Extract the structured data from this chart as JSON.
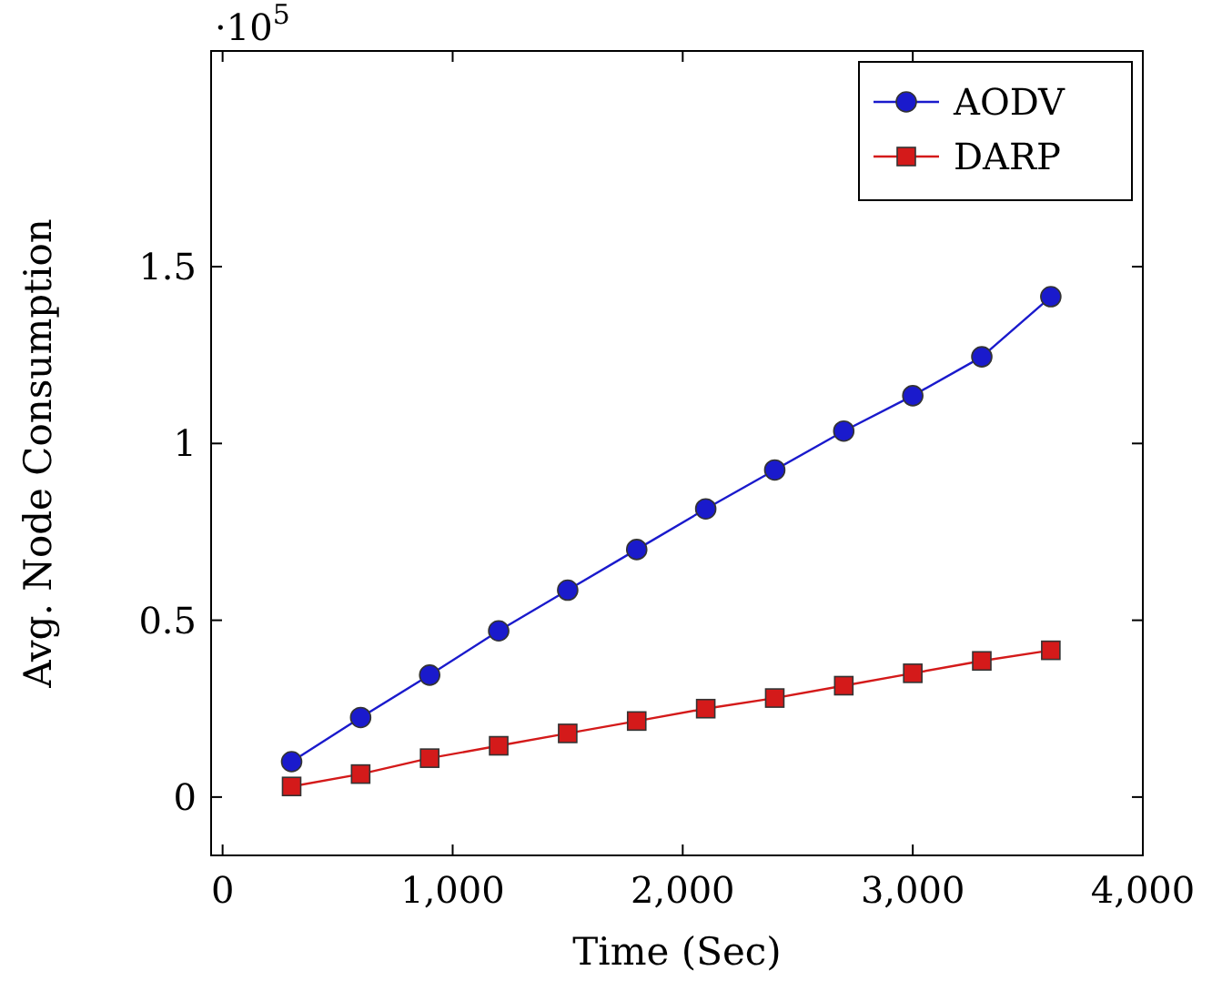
{
  "chart_data": {
    "type": "line",
    "xlabel": "Time (Sec)",
    "ylabel": "Avg. Node Consumption",
    "annotations": [
      "·10$^{5}$"
    ],
    "x": [
      300,
      600,
      900,
      1200,
      1500,
      1800,
      2100,
      2400,
      2700,
      3000,
      3300,
      3600
    ],
    "xlim": [
      -50,
      4000
    ],
    "xticks": [
      {
        "value": 0,
        "label": "0"
      },
      {
        "value": 1000,
        "label": "1,000"
      },
      {
        "value": 2000,
        "label": "2,000"
      },
      {
        "value": 3000,
        "label": "3,000"
      },
      {
        "value": 4000,
        "label": "4,000"
      }
    ],
    "ylim": [
      -0.165,
      2.11
    ],
    "yticks": [
      0,
      0.5,
      1,
      1.5
    ],
    "legend": "top right",
    "grid": false,
    "series": [
      {
        "name": "AODV",
        "color": "#1a1acc",
        "marker": "circle",
        "values": [
          0.1,
          0.225,
          0.345,
          0.47,
          0.585,
          0.7,
          0.815,
          0.925,
          1.035,
          1.135,
          1.245,
          1.415
        ]
      },
      {
        "name": "DARP",
        "color": "#d41a1a",
        "marker": "square",
        "values": [
          0.03,
          0.065,
          0.11,
          0.145,
          0.18,
          0.215,
          0.25,
          0.28,
          0.315,
          0.35,
          0.385,
          0.415
        ]
      }
    ]
  }
}
